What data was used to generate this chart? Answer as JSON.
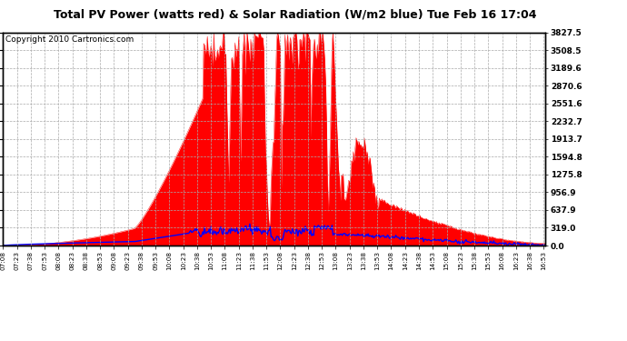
{
  "title": "Total PV Power (watts red) & Solar Radiation (W/m2 blue) Tue Feb 16 17:04",
  "copyright": "Copyright 2010 Cartronics.com",
  "ylabel_right_ticks": [
    0.0,
    319.0,
    637.9,
    956.9,
    1275.8,
    1594.8,
    1913.7,
    2232.7,
    2551.6,
    2870.6,
    3189.6,
    3508.5,
    3827.5
  ],
  "pv_color": "red",
  "solar_color": "blue",
  "bg_color": "white",
  "grid_color": "#aaaaaa",
  "pv_max": 3827.5,
  "solar_max": 900,
  "title_fontsize": 9,
  "copyright_fontsize": 6.5
}
